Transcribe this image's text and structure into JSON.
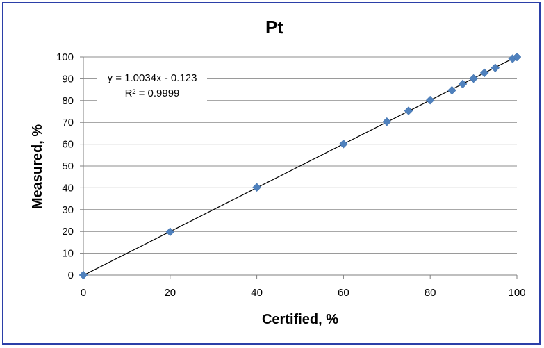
{
  "chart_data": {
    "type": "scatter",
    "title": "Pt",
    "xlabel": "Certified, %",
    "ylabel": "Measured, %",
    "xlim": [
      0,
      100
    ],
    "ylim": [
      0,
      100
    ],
    "xticks": [
      "0",
      "20",
      "40",
      "60",
      "80",
      "100"
    ],
    "yticks": [
      "0",
      "10",
      "20",
      "30",
      "40",
      "50",
      "60",
      "70",
      "80",
      "90",
      "100"
    ],
    "grid": "horizontal",
    "marker_color": "#4f81bd",
    "series": [
      {
        "points": [
          [
            0,
            0
          ],
          [
            20,
            19.8
          ],
          [
            40,
            40.2
          ],
          [
            60,
            60.1
          ],
          [
            70,
            70.3
          ],
          [
            75,
            75.3
          ],
          [
            80,
            80.2
          ],
          [
            85,
            84.7
          ],
          [
            87.5,
            87.6
          ],
          [
            90,
            90.1
          ],
          [
            92.5,
            92.7
          ],
          [
            95,
            95.0
          ],
          [
            99,
            99.2
          ],
          [
            100,
            100.0
          ]
        ]
      }
    ],
    "trendline": {
      "slope": 1.0034,
      "intercept": -0.123,
      "equation": "y = 1.0034x - 0.123",
      "r2": "R² = 0.9999"
    }
  }
}
